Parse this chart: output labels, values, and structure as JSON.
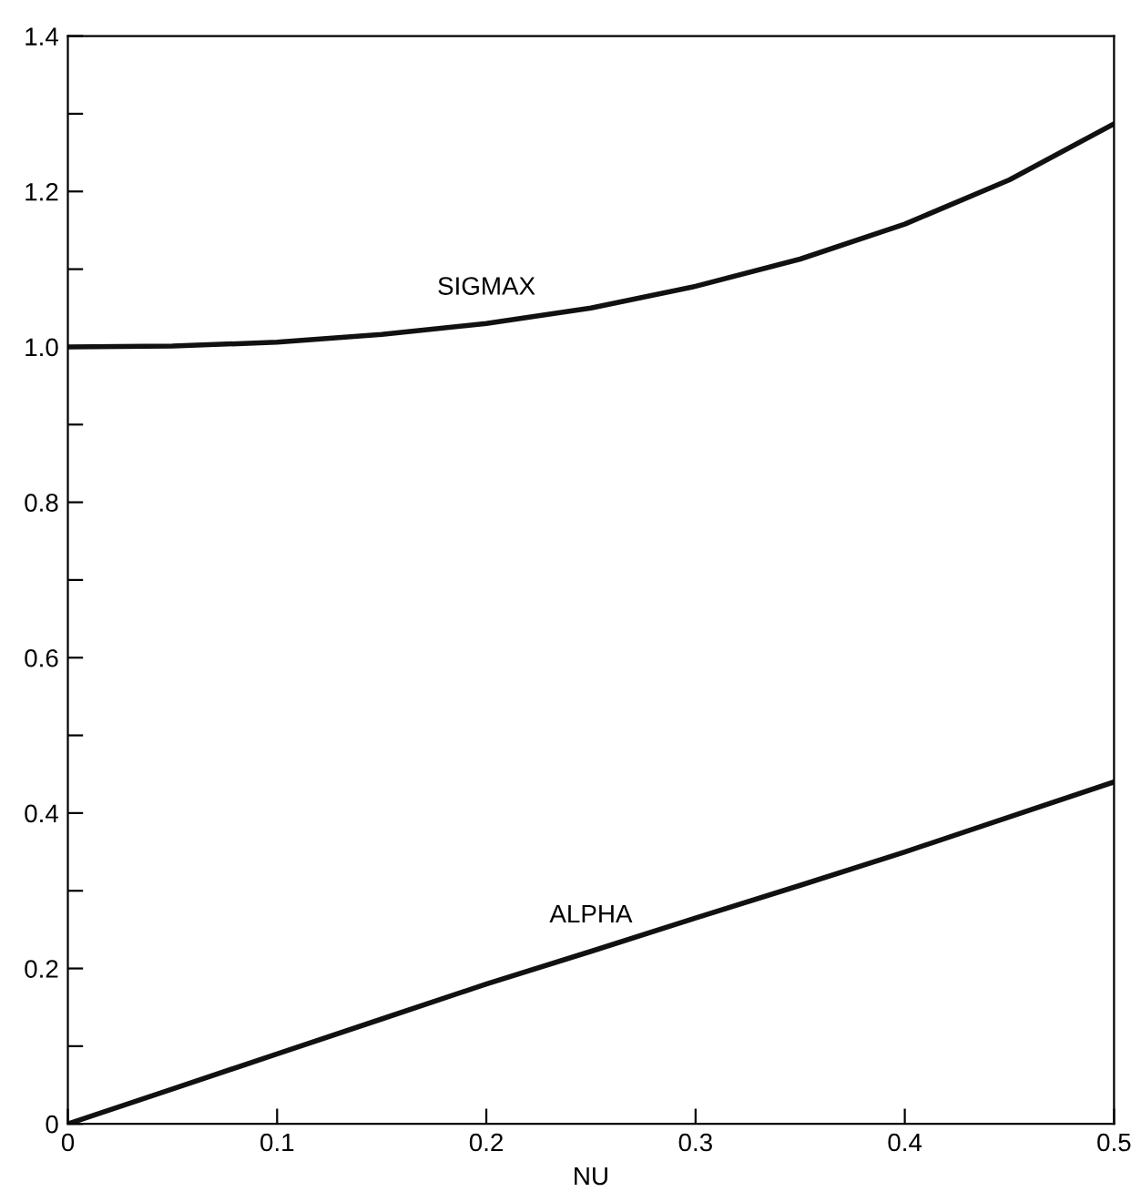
{
  "chart_data": {
    "type": "line",
    "xlabel": "NU",
    "x": [
      0,
      0.05,
      0.1,
      0.15,
      0.2,
      0.25,
      0.3,
      0.35,
      0.4,
      0.45,
      0.5
    ],
    "series": [
      {
        "name": "SIGMAX",
        "color": "#111111",
        "values": [
          1.0,
          1.001,
          1.006,
          1.016,
          1.03,
          1.05,
          1.078,
          1.113,
          1.158,
          1.215,
          1.287
        ]
      },
      {
        "name": "ALPHA",
        "color": "#111111",
        "values": [
          0,
          0.045,
          0.09,
          0.135,
          0.18,
          0.222,
          0.265,
          0.307,
          0.35,
          0.395,
          0.44
        ]
      }
    ],
    "xlim": [
      0,
      0.5
    ],
    "ylim": [
      0,
      1.4
    ],
    "xticks": [
      0,
      0.1,
      0.2,
      0.3,
      0.4,
      0.5
    ],
    "yticks": [
      0,
      {
        "value": 0.1,
        "label": null
      },
      0.2,
      {
        "value": 0.3,
        "label": null
      },
      0.4,
      {
        "value": 0.5,
        "label": null
      },
      0.6,
      {
        "value": 0.7,
        "label": null
      },
      0.8,
      {
        "value": 0.9,
        "label": null
      },
      {
        "value": 1.0,
        "label": "1.0"
      },
      {
        "value": 1.1,
        "label": null
      },
      1.2,
      {
        "value": 1.3,
        "label": null
      },
      1.4
    ],
    "grid": false,
    "legend": false,
    "marker": "none",
    "line_style": "solid"
  }
}
